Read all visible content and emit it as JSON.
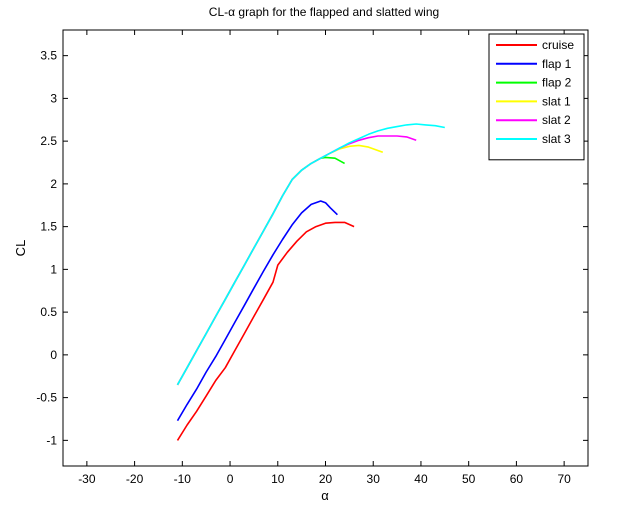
{
  "chart_data": {
    "type": "line",
    "title": "CL-α graph for the flapped and slatted wing",
    "xlabel": "α",
    "ylabel": "CL",
    "xlim": [
      -35,
      75
    ],
    "ylim": [
      -1.3,
      3.8
    ],
    "xticks": [
      -30,
      -20,
      -10,
      0,
      10,
      20,
      30,
      40,
      50,
      60,
      70
    ],
    "yticks": [
      -1,
      -0.5,
      0,
      0.5,
      1,
      1.5,
      2,
      2.5,
      3,
      3.5
    ],
    "xtick_labels": [
      "-30",
      "-20",
      "-10",
      "0",
      "10",
      "20",
      "30",
      "40",
      "50",
      "60",
      "70"
    ],
    "ytick_labels": [
      "-1",
      "-0.5",
      "0",
      "0.5",
      "1",
      "1.5",
      "2",
      "2.5",
      "3",
      "3.5"
    ],
    "grid": false,
    "legend_position": "top-right",
    "series": [
      {
        "name": "cruise",
        "color": "#ff0000",
        "x": [
          -11,
          -9,
          -7,
          -5,
          -3,
          -1,
          1,
          3,
          5,
          7,
          9,
          10,
          12,
          14,
          16,
          18,
          20,
          22,
          24,
          26
        ],
        "y": [
          -1.0,
          -0.82,
          -0.66,
          -0.48,
          -0.3,
          -0.15,
          0.05,
          0.25,
          0.45,
          0.65,
          0.85,
          1.05,
          1.2,
          1.33,
          1.44,
          1.5,
          1.54,
          1.55,
          1.55,
          1.5
        ]
      },
      {
        "name": "flap 1",
        "color": "#0000ff",
        "x": [
          -11,
          -9,
          -7,
          -5,
          -3,
          -1,
          1,
          3,
          5,
          7,
          9,
          11,
          13,
          15,
          17,
          19,
          20,
          21,
          22.5
        ],
        "y": [
          -0.77,
          -0.58,
          -0.4,
          -0.2,
          -0.02,
          0.18,
          0.38,
          0.58,
          0.78,
          0.98,
          1.17,
          1.35,
          1.52,
          1.66,
          1.76,
          1.8,
          1.78,
          1.72,
          1.64
        ]
      },
      {
        "name": "flap 2",
        "color": "#00ff00",
        "x": [
          -11,
          -9,
          -7,
          -5,
          -3,
          -1,
          1,
          3,
          5,
          7,
          9,
          11,
          13,
          15,
          17,
          19,
          20,
          22,
          24
        ],
        "y": [
          -0.35,
          -0.15,
          0.05,
          0.25,
          0.45,
          0.65,
          0.85,
          1.05,
          1.25,
          1.45,
          1.65,
          1.86,
          2.05,
          2.16,
          2.24,
          2.3,
          2.31,
          2.3,
          2.24
        ]
      },
      {
        "name": "slat 1",
        "color": "#ffff00",
        "x": [
          -11,
          -9,
          -7,
          -5,
          -3,
          -1,
          1,
          3,
          5,
          7,
          9,
          11,
          13,
          15,
          17,
          19,
          21,
          23,
          25,
          27,
          29,
          32
        ],
        "y": [
          -0.35,
          -0.15,
          0.05,
          0.25,
          0.45,
          0.65,
          0.85,
          1.05,
          1.25,
          1.45,
          1.65,
          1.86,
          2.05,
          2.16,
          2.24,
          2.3,
          2.36,
          2.41,
          2.44,
          2.45,
          2.43,
          2.37
        ]
      },
      {
        "name": "slat 2",
        "color": "#ff00ff",
        "x": [
          -11,
          -9,
          -7,
          -5,
          -3,
          -1,
          1,
          3,
          5,
          7,
          9,
          11,
          13,
          15,
          17,
          19,
          21,
          23,
          25,
          27,
          29,
          31,
          33,
          35,
          37,
          39
        ],
        "y": [
          -0.35,
          -0.15,
          0.05,
          0.25,
          0.45,
          0.65,
          0.85,
          1.05,
          1.25,
          1.45,
          1.65,
          1.86,
          2.05,
          2.16,
          2.24,
          2.3,
          2.36,
          2.42,
          2.47,
          2.51,
          2.54,
          2.56,
          2.56,
          2.56,
          2.55,
          2.51
        ]
      },
      {
        "name": "slat 3",
        "color": "#00ffff",
        "x": [
          -11,
          -9,
          -7,
          -5,
          -3,
          -1,
          1,
          3,
          5,
          7,
          9,
          11,
          13,
          15,
          17,
          19,
          21,
          23,
          25,
          27,
          29,
          31,
          33,
          35,
          37,
          39,
          41,
          43,
          45
        ],
        "y": [
          -0.35,
          -0.15,
          0.05,
          0.25,
          0.45,
          0.65,
          0.85,
          1.05,
          1.25,
          1.45,
          1.65,
          1.86,
          2.05,
          2.16,
          2.24,
          2.3,
          2.36,
          2.42,
          2.48,
          2.53,
          2.58,
          2.62,
          2.65,
          2.67,
          2.69,
          2.7,
          2.69,
          2.68,
          2.66
        ]
      }
    ]
  }
}
